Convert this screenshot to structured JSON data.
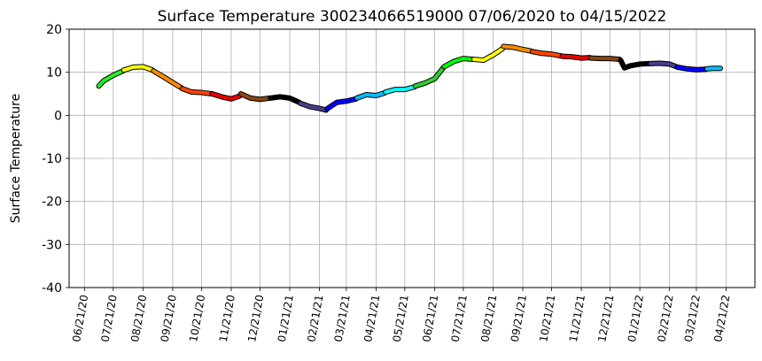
{
  "chart_data": {
    "type": "line",
    "title": "Surface Temperature 300234066519000  07/06/2020 to 04/15/2022",
    "y_label": "Surface Temperature",
    "xlim": [
      "06/05/20",
      "05/21/22"
    ],
    "xticks": [
      "06/21/20",
      "07/21/20",
      "08/21/20",
      "09/21/20",
      "10/21/20",
      "11/21/20",
      "12/21/20",
      "01/21/21",
      "02/21/21",
      "03/21/21",
      "04/21/21",
      "05/21/21",
      "06/21/21",
      "07/21/21",
      "08/21/21",
      "09/21/21",
      "10/21/21",
      "11/21/21",
      "12/21/21",
      "01/21/22",
      "02/21/22",
      "03/21/22",
      "04/21/22"
    ],
    "ylim": [
      -40,
      20
    ],
    "yticks": [
      -40,
      -30,
      -20,
      -10,
      0,
      10,
      20
    ],
    "grid": true,
    "series": [
      {
        "color": "#22ee22",
        "x": [
          "07/06/20",
          "07/11/20",
          "07/21/20",
          "07/31/20"
        ],
        "values": [
          6.8,
          8.0,
          9.3,
          10.3
        ]
      },
      {
        "color": "#ffff00",
        "x": [
          "08/01/20",
          "08/11/20",
          "08/21/20",
          "08/31/20"
        ],
        "values": [
          10.5,
          11.2,
          11.3,
          10.5
        ]
      },
      {
        "color": "#ff8c00",
        "x": [
          "09/01/20",
          "09/11/20",
          "09/21/20",
          "09/30/20"
        ],
        "values": [
          10.3,
          9.0,
          7.6,
          6.4
        ]
      },
      {
        "color": "#ff4500",
        "x": [
          "10/01/20",
          "10/11/20",
          "10/21/20",
          "10/31/20"
        ],
        "values": [
          6.2,
          5.4,
          5.3,
          5.0
        ]
      },
      {
        "color": "#ee0000",
        "x": [
          "11/01/20",
          "11/11/20",
          "11/21/20",
          "11/30/20"
        ],
        "values": [
          5.0,
          4.3,
          3.8,
          4.5
        ]
      },
      {
        "color": "#8b4513",
        "x": [
          "12/01/20",
          "12/11/20",
          "12/21/20",
          "12/31/20"
        ],
        "values": [
          5.0,
          4.0,
          3.7,
          4.0
        ]
      },
      {
        "color": "#000000",
        "x": [
          "01/01/21",
          "01/11/21",
          "01/21/21",
          "01/31/21"
        ],
        "values": [
          4.0,
          4.3,
          4.0,
          3.0
        ]
      },
      {
        "color": "#483d8b",
        "x": [
          "02/01/21",
          "02/11/21",
          "02/21/21",
          "02/28/21"
        ],
        "values": [
          2.8,
          2.0,
          1.6,
          1.2
        ]
      },
      {
        "color": "#0000ff",
        "x": [
          "03/01/21",
          "03/11/21",
          "03/21/21",
          "03/31/21"
        ],
        "values": [
          1.5,
          3.0,
          3.3,
          3.8
        ]
      },
      {
        "color": "#00bfff",
        "x": [
          "04/01/21",
          "04/11/21",
          "04/21/21",
          "04/30/21"
        ],
        "values": [
          4.0,
          4.8,
          4.6,
          5.2
        ]
      },
      {
        "color": "#00ffff",
        "x": [
          "05/01/21",
          "05/11/21",
          "05/21/21",
          "05/31/21"
        ],
        "values": [
          5.4,
          6.0,
          6.0,
          6.6
        ]
      },
      {
        "color": "#32cd32",
        "x": [
          "06/01/21",
          "06/11/21",
          "06/21/21",
          "06/30/21"
        ],
        "values": [
          6.8,
          7.5,
          8.5,
          11.0
        ]
      },
      {
        "color": "#00ff00",
        "x": [
          "07/01/21",
          "07/11/21",
          "07/21/21",
          "07/31/21"
        ],
        "values": [
          11.3,
          12.5,
          13.2,
          13.0
        ]
      },
      {
        "color": "#ffff00",
        "x": [
          "08/01/21",
          "08/11/21",
          "08/21/21",
          "08/31/21"
        ],
        "values": [
          13.0,
          12.8,
          14.0,
          15.5
        ]
      },
      {
        "color": "#ff8c00",
        "x": [
          "09/01/21",
          "09/11/21",
          "09/21/21",
          "09/30/21"
        ],
        "values": [
          16.0,
          15.8,
          15.3,
          14.9
        ]
      },
      {
        "color": "#ff4500",
        "x": [
          "10/01/21",
          "10/11/21",
          "10/21/21",
          "10/31/21"
        ],
        "values": [
          14.8,
          14.4,
          14.2,
          13.8
        ]
      },
      {
        "color": "#ee0000",
        "x": [
          "11/01/21",
          "11/11/21",
          "11/21/21",
          "11/30/21"
        ],
        "values": [
          13.7,
          13.6,
          13.3,
          13.4
        ]
      },
      {
        "color": "#8b4513",
        "x": [
          "12/01/21",
          "12/11/21",
          "12/21/21",
          "12/31/21"
        ],
        "values": [
          13.3,
          13.2,
          13.2,
          13.0
        ]
      },
      {
        "color": "#000000",
        "x": [
          "01/01/22",
          "01/05/22",
          "01/11/22",
          "01/21/22",
          "01/31/22"
        ],
        "values": [
          12.8,
          11.0,
          11.5,
          11.9,
          12.0
        ]
      },
      {
        "color": "#483d8b",
        "x": [
          "02/01/22",
          "02/11/22",
          "02/21/22",
          "02/28/22"
        ],
        "values": [
          12.0,
          12.1,
          11.9,
          11.3
        ]
      },
      {
        "color": "#0000ff",
        "x": [
          "03/01/22",
          "03/11/22",
          "03/21/22",
          "03/31/22"
        ],
        "values": [
          11.2,
          10.8,
          10.6,
          10.7
        ]
      },
      {
        "color": "#00bfff",
        "x": [
          "04/01/22",
          "04/08/22",
          "04/15/22"
        ],
        "values": [
          10.8,
          10.9,
          10.9
        ]
      }
    ]
  }
}
